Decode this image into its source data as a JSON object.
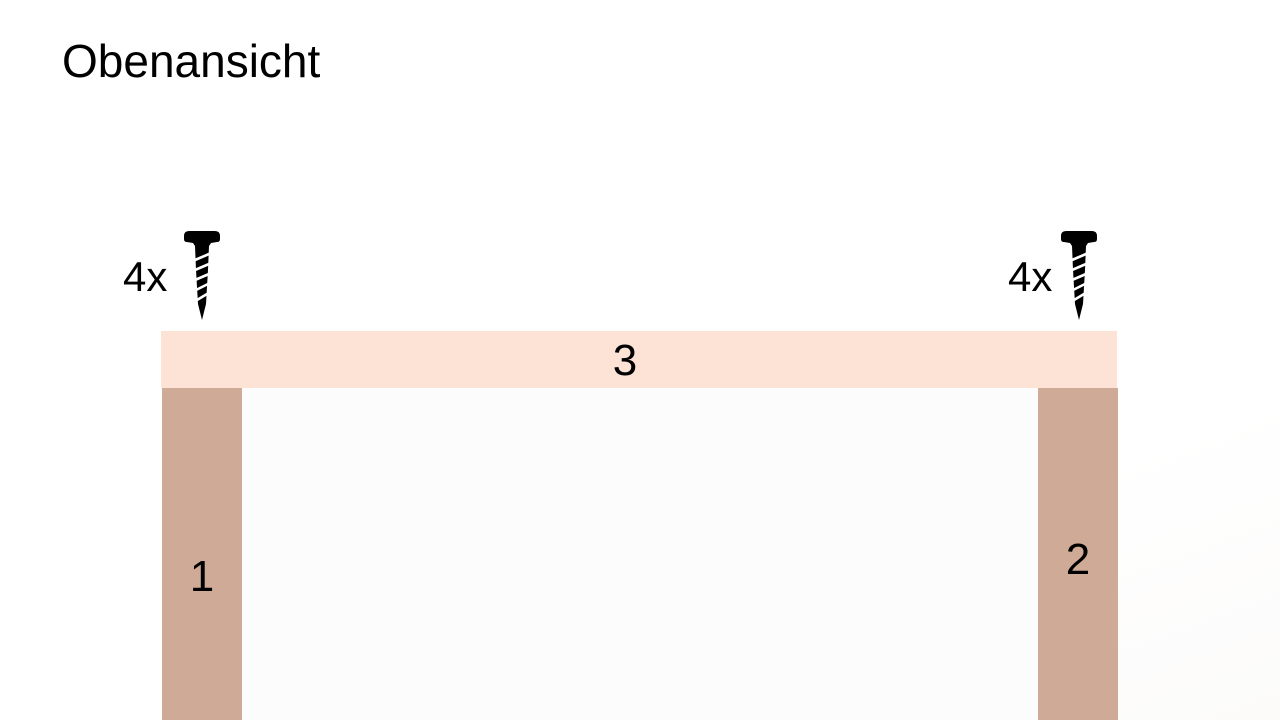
{
  "title": "Obenansicht",
  "parts": {
    "top_board": "3",
    "left_leg": "1",
    "right_leg": "2"
  },
  "screws": {
    "left_count": "4x",
    "right_count": "4x",
    "icon": "screw-icon"
  },
  "colors": {
    "top_board": "#fde3d6",
    "legs": "#cfab97",
    "screw": "#000000"
  }
}
